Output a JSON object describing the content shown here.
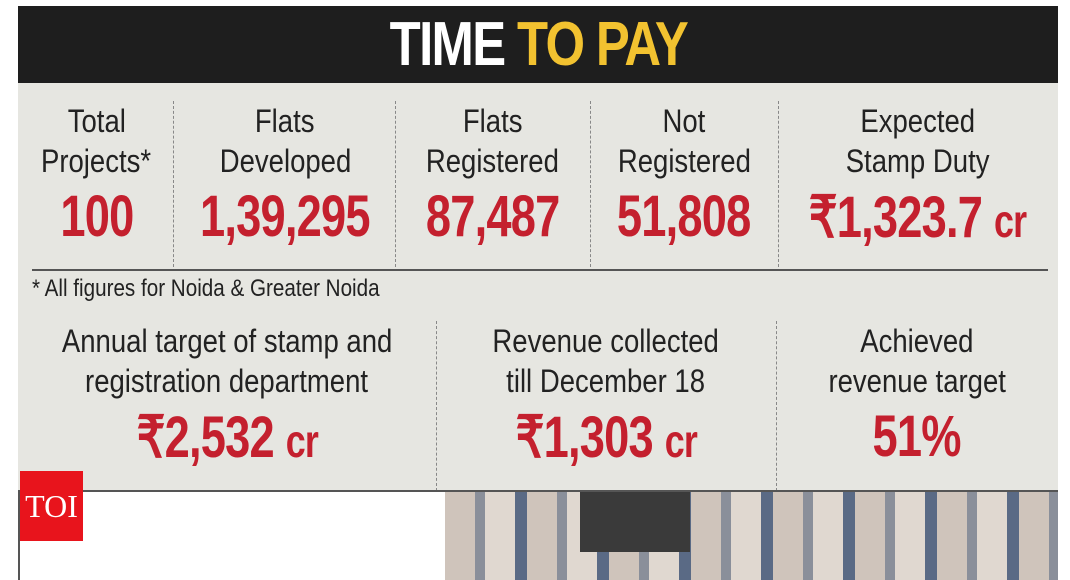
{
  "header": {
    "title_white": "TIME",
    "title_yellow": "TO PAY"
  },
  "stats_top": [
    {
      "label1": "Total",
      "label2": "Projects*",
      "value": "100"
    },
    {
      "label1": "Flats",
      "label2": "Developed",
      "value": "1,39,295"
    },
    {
      "label1": "Flats",
      "label2": "Registered",
      "value": "87,487"
    },
    {
      "label1": "Not",
      "label2": "Registered",
      "value": "51,808"
    },
    {
      "label1": "Expected",
      "label2": "Stamp Duty",
      "value": "₹1,323.7",
      "unit": "cr"
    }
  ],
  "footnote": "* All figures for Noida & Greater Noida",
  "stats_bottom": [
    {
      "label1": "Annual target of stamp and",
      "label2": "registration department",
      "value": "₹2,532",
      "unit": "cr"
    },
    {
      "label1": "Revenue collected",
      "label2": "till December 18",
      "value": "₹1,303",
      "unit": "cr"
    },
    {
      "label1": "Achieved",
      "label2": "revenue target",
      "value": "51%"
    }
  ],
  "logo": "TOI",
  "colors": {
    "header_bg": "#1e1e1e",
    "accent_yellow": "#f2c230",
    "value_red": "#c4202e",
    "panel_bg": "#e6e6e1",
    "logo_red": "#e8141c"
  }
}
